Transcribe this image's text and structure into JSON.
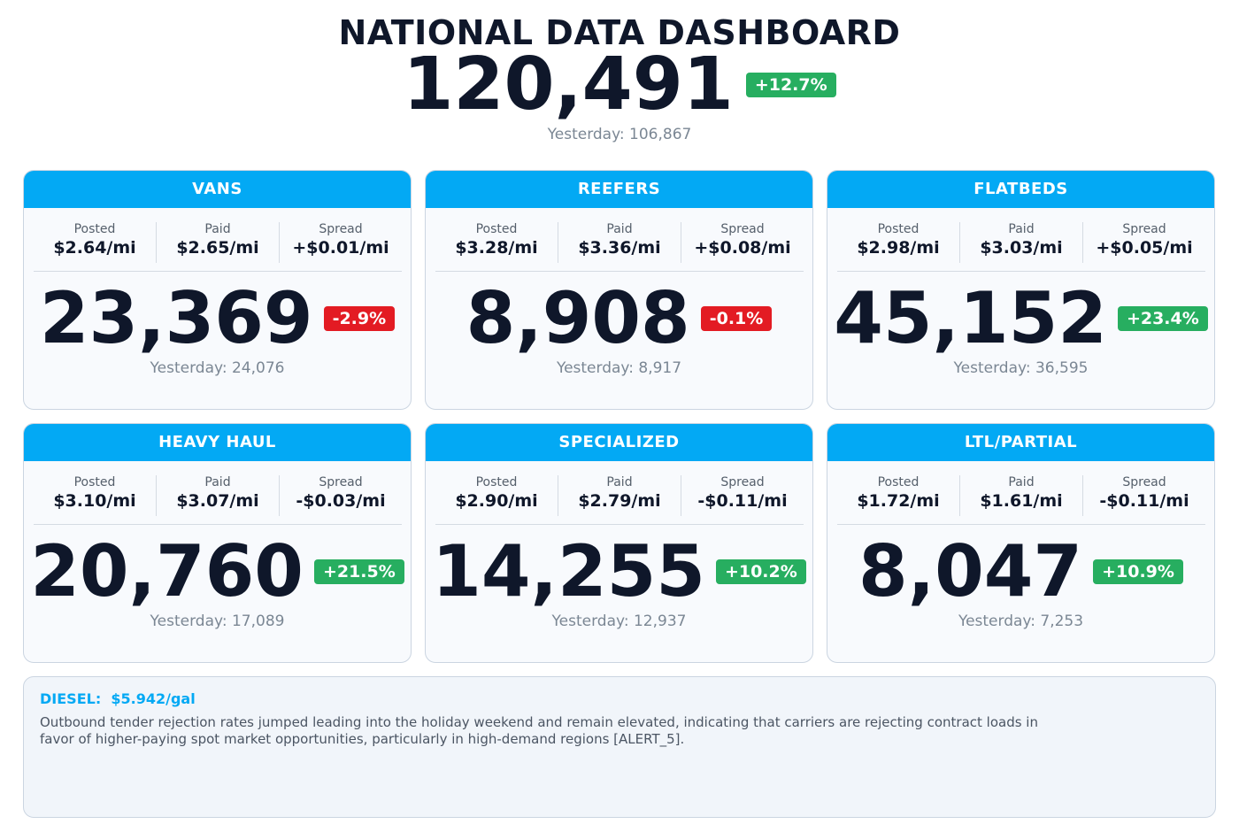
{
  "header": {
    "title": "NATIONAL DATA DASHBOARD",
    "total_value": "120,491",
    "total_change": "+12.7%",
    "total_yesterday": "Yesterday: 106,867"
  },
  "labels": {
    "posted": "Posted",
    "paid": "Paid",
    "spread": "Spread"
  },
  "cards": [
    {
      "title": "VANS",
      "posted": "$2.64/mi",
      "paid": "$2.65/mi",
      "spread": "+$0.01/mi",
      "value": "23,369",
      "change": "-2.9%",
      "direction": "down",
      "yesterday": "Yesterday: 24,076"
    },
    {
      "title": "REEFERS",
      "posted": "$3.28/mi",
      "paid": "$3.36/mi",
      "spread": "+$0.08/mi",
      "value": "8,908",
      "change": "-0.1%",
      "direction": "down",
      "yesterday": "Yesterday: 8,917"
    },
    {
      "title": "FLATBEDS",
      "posted": "$2.98/mi",
      "paid": "$3.03/mi",
      "spread": "+$0.05/mi",
      "value": "45,152",
      "change": "+23.4%",
      "direction": "up",
      "yesterday": "Yesterday: 36,595"
    },
    {
      "title": "HEAVY HAUL",
      "posted": "$3.10/mi",
      "paid": "$3.07/mi",
      "spread": "-$0.03/mi",
      "value": "20,760",
      "change": "+21.5%",
      "direction": "up",
      "yesterday": "Yesterday: 17,089"
    },
    {
      "title": "SPECIALIZED",
      "posted": "$2.90/mi",
      "paid": "$2.79/mi",
      "spread": "-$0.11/mi",
      "value": "14,255",
      "change": "+10.2%",
      "direction": "up",
      "yesterday": "Yesterday: 12,937"
    },
    {
      "title": "LTL/PARTIAL",
      "posted": "$1.72/mi",
      "paid": "$1.61/mi",
      "spread": "-$0.11/mi",
      "value": "8,047",
      "change": "+10.9%",
      "direction": "up",
      "yesterday": "Yesterday: 7,253"
    }
  ],
  "footer": {
    "diesel": "DIESEL:  $5.942/gal",
    "commentary": "Outbound tender rejection rates jumped leading into the holiday weekend and remain elevated, indicating that carriers are rejecting contract loads in favor of higher-paying spot market opportunities, particularly in high-demand regions [ALERT_5]."
  },
  "colors": {
    "accent": "#03a9f4",
    "up": "#27ae60",
    "down": "#e31b23",
    "text": "#0f172a",
    "muted": "#7b8794"
  }
}
